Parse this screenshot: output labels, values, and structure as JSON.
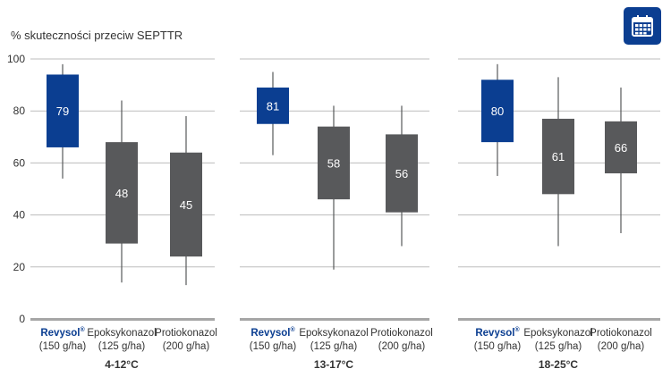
{
  "chart_data": {
    "type": "boxplot",
    "ylabel": "% skuteczności przeciw SEPTTR",
    "ylim": [
      0,
      100
    ],
    "yticks": [
      0,
      20,
      40,
      60,
      80,
      100
    ],
    "grid": true,
    "colors": {
      "highlight": "#0b3e91",
      "other": "#58595b",
      "grid": "#bdbdbd",
      "axis": "#a6a6a6",
      "text": "#333333"
    },
    "panels": [
      {
        "label": "4-12°C",
        "boxes": [
          {
            "name": "Revysol",
            "sup": "®",
            "dose": "(150 g/ha)",
            "highlight": true,
            "min": 54,
            "q1": 66,
            "q3": 94,
            "max": 98,
            "value": 79
          },
          {
            "name": "Epoksykonazol",
            "sup": "",
            "dose": "(125 g/ha)",
            "highlight": false,
            "min": 14,
            "q1": 29,
            "q3": 68,
            "max": 84,
            "value": 48
          },
          {
            "name": "Protiokonazol",
            "sup": "",
            "dose": "(200 g/ha)",
            "highlight": false,
            "min": 13,
            "q1": 24,
            "q3": 64,
            "max": 78,
            "value": 45
          }
        ]
      },
      {
        "label": "13-17°C",
        "boxes": [
          {
            "name": "Revysol",
            "sup": "®",
            "dose": "(150 g/ha)",
            "highlight": true,
            "min": 63,
            "q1": 75,
            "q3": 89,
            "max": 95,
            "value": 81
          },
          {
            "name": "Epoksykonazol",
            "sup": "",
            "dose": "(125 g/ha)",
            "highlight": false,
            "min": 19,
            "q1": 46,
            "q3": 74,
            "max": 82,
            "value": 58
          },
          {
            "name": "Protiokonazol",
            "sup": "",
            "dose": "(200 g/ha)",
            "highlight": false,
            "min": 28,
            "q1": 41,
            "q3": 71,
            "max": 82,
            "value": 56
          }
        ]
      },
      {
        "label": "18-25°C",
        "boxes": [
          {
            "name": "Revysol",
            "sup": "®",
            "dose": "(150 g/ha)",
            "highlight": true,
            "min": 55,
            "q1": 68,
            "q3": 92,
            "max": 98,
            "value": 80
          },
          {
            "name": "Epoksykonazol",
            "sup": "",
            "dose": "(125 g/ha)",
            "highlight": false,
            "min": 28,
            "q1": 48,
            "q3": 77,
            "max": 93,
            "value": 61
          },
          {
            "name": "Protiokonazol",
            "sup": "",
            "dose": "(200 g/ha)",
            "highlight": false,
            "min": 33,
            "q1": 56,
            "q3": 76,
            "max": 89,
            "value": 66
          }
        ]
      }
    ]
  },
  "toolbar": {
    "calendar_icon": "calendar-icon"
  }
}
